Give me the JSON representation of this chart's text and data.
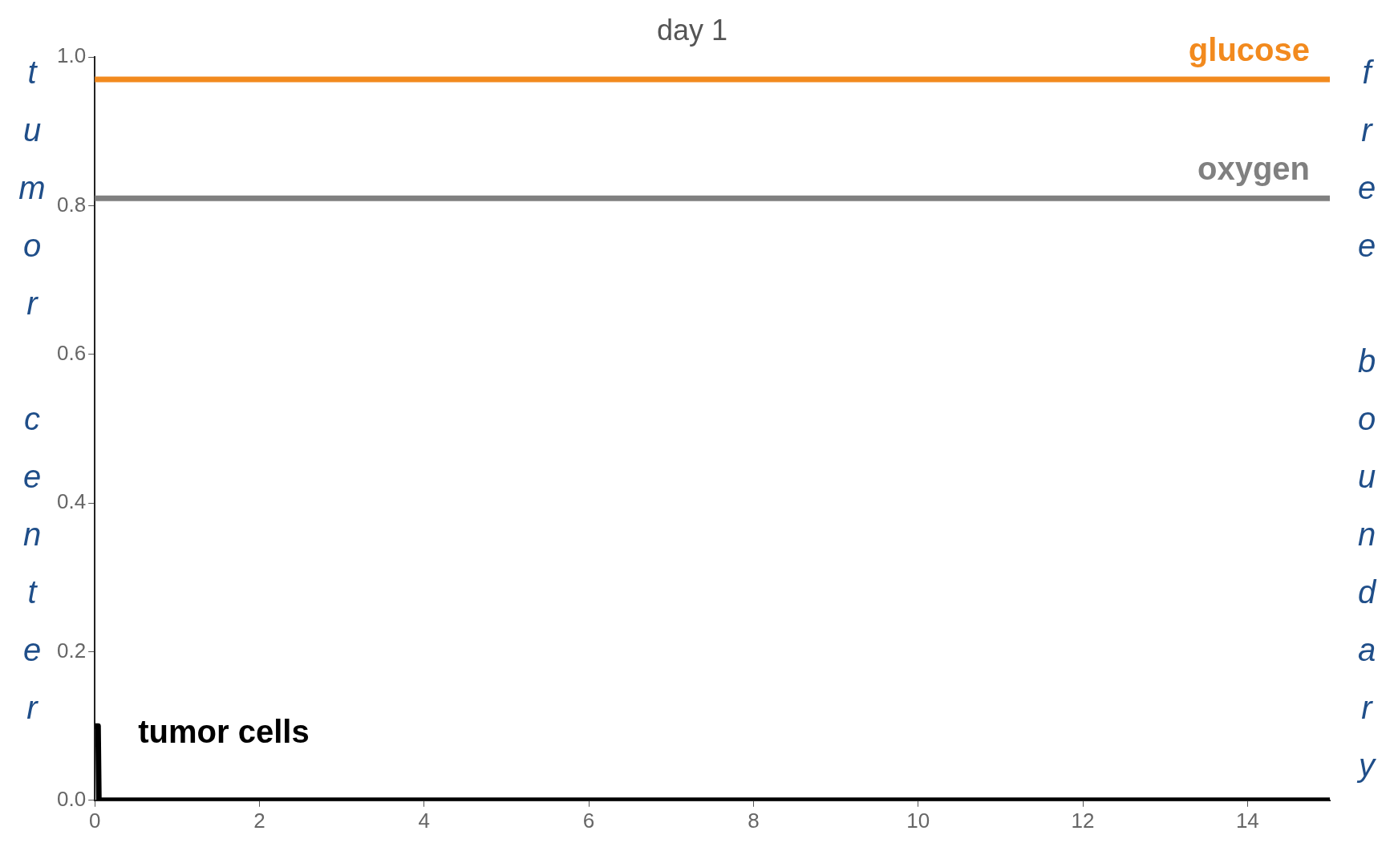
{
  "chart_data": {
    "type": "line",
    "title": "day 1",
    "ylabel": "tumor center",
    "y2label": "free boundary",
    "xlim": [
      0,
      15
    ],
    "xticks": [
      0,
      2,
      4,
      6,
      8,
      10,
      12,
      14
    ],
    "ylim": [
      0,
      1
    ],
    "yticks": [
      {
        "value": 0,
        "label": "0.0"
      },
      0.2,
      0.4,
      0.6,
      0.8,
      {
        "value": 1,
        "label": "1.0"
      }
    ],
    "grid": false,
    "legend": false,
    "series": [
      {
        "name": "glucose",
        "color": "#f28a1e",
        "x": [
          0,
          15
        ],
        "values": [
          0.97,
          0.97
        ]
      },
      {
        "name": "oxygen",
        "color": "#808080",
        "x": [
          0,
          15
        ],
        "values": [
          0.81,
          0.81
        ]
      },
      {
        "name": "tumor cells",
        "color": "#000000",
        "x": [
          0,
          0.04,
          0.05,
          15
        ],
        "values": [
          0.1,
          0.1,
          0,
          0
        ]
      }
    ]
  }
}
